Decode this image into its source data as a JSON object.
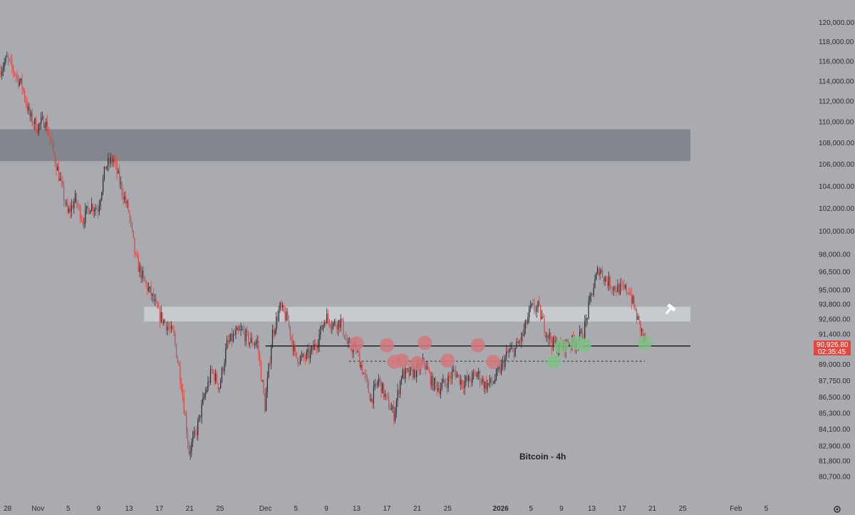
{
  "colors": {
    "background": "#a9abb1",
    "candle_up": "#2a2c33",
    "candle_down": "#d9473f",
    "resistance_zone_dark": "#84868d",
    "resistance_zone_light": "#d2d4da",
    "marker_red": "#d4787c",
    "marker_green": "#7fbf86",
    "price_tag": "#e5473f"
  },
  "icons": {
    "settings": "gear-icon",
    "hammer": "hammer-icon"
  },
  "annotation": "Bitcoin - 4h",
  "price_tag": {
    "price": "90,926.80",
    "countdown": "02:35:45"
  },
  "chart_data": {
    "type": "candlestick",
    "title": "",
    "annotation": "Bitcoin - 4h",
    "timeframe": "4h",
    "x_axis": {
      "ticks": [
        "28",
        "Nov",
        "5",
        "9",
        "13",
        "17",
        "21",
        "25",
        "Dec",
        "5",
        "9",
        "13",
        "17",
        "21",
        "25",
        "2026",
        "5",
        "9",
        "13",
        "17",
        "21",
        "25",
        "Feb",
        "5"
      ],
      "tick_dates": [
        "2025-10-28",
        "2025-11-01",
        "2025-11-05",
        "2025-11-09",
        "2025-11-13",
        "2025-11-17",
        "2025-11-21",
        "2025-11-25",
        "2025-12-01",
        "2025-12-05",
        "2025-12-09",
        "2025-12-13",
        "2025-12-17",
        "2025-12-21",
        "2025-12-25",
        "2026-01-01",
        "2026-01-05",
        "2026-01-09",
        "2026-01-13",
        "2026-01-17",
        "2026-01-21",
        "2026-01-25",
        "2026-02-01",
        "2026-02-05"
      ],
      "range": [
        "2025-10-27",
        "2026-02-09"
      ]
    },
    "y_axis": {
      "ticks": [
        "120,000.00",
        "118,000.00",
        "116,000.00",
        "114,000.00",
        "112,000.00",
        "110,000.00",
        "108,000.00",
        "106,000.00",
        "104,000.00",
        "102,000.00",
        "100,000.00",
        "98,000.00",
        "96,500.00",
        "95,000.00",
        "93,800.00",
        "92,600.00",
        "91,400.00",
        "89,000.00",
        "87,750.00",
        "86,500.00",
        "85,300.00",
        "84,100.00",
        "82,900.00",
        "81,800.00",
        "80,700.00"
      ],
      "scale": "log",
      "range": [
        80000,
        121000
      ]
    },
    "path": [
      [
        "2025-10-27",
        115000
      ],
      [
        "2025-10-28",
        116200
      ],
      [
        "2025-10-30",
        113500
      ],
      [
        "2025-10-31",
        110500
      ],
      [
        "2025-11-01",
        109500
      ],
      [
        "2025-11-02",
        110200
      ],
      [
        "2025-11-03",
        107500
      ],
      [
        "2025-11-04",
        104500
      ],
      [
        "2025-11-05",
        101500
      ],
      [
        "2025-11-06",
        102800
      ],
      [
        "2025-11-07",
        101000
      ],
      [
        "2025-11-08",
        102300
      ],
      [
        "2025-11-09",
        102000
      ],
      [
        "2025-11-10",
        105800
      ],
      [
        "2025-11-11",
        106500
      ],
      [
        "2025-11-12",
        104000
      ],
      [
        "2025-11-13",
        101800
      ],
      [
        "2025-11-14",
        97500
      ],
      [
        "2025-11-15",
        95800
      ],
      [
        "2025-11-16",
        94600
      ],
      [
        "2025-11-17",
        93000
      ],
      [
        "2025-11-18",
        92200
      ],
      [
        "2025-11-19",
        91200
      ],
      [
        "2025-11-20",
        87500
      ],
      [
        "2025-11-21",
        82500
      ],
      [
        "2025-11-22",
        84000
      ],
      [
        "2025-11-23",
        86500
      ],
      [
        "2025-11-24",
        88500
      ],
      [
        "2025-11-25",
        87300
      ],
      [
        "2025-11-26",
        90500
      ],
      [
        "2025-11-27",
        91300
      ],
      [
        "2025-11-28",
        91600
      ],
      [
        "2025-11-29",
        90800
      ],
      [
        "2025-11-30",
        90700
      ],
      [
        "2025-12-01",
        85800
      ],
      [
        "2025-12-02",
        91500
      ],
      [
        "2025-12-03",
        93500
      ],
      [
        "2025-12-04",
        92500
      ],
      [
        "2025-12-05",
        89600
      ],
      [
        "2025-12-06",
        89400
      ],
      [
        "2025-12-07",
        89800
      ],
      [
        "2025-12-08",
        91000
      ],
      [
        "2025-12-09",
        92800
      ],
      [
        "2025-12-10",
        92200
      ],
      [
        "2025-12-11",
        92400
      ],
      [
        "2025-12-12",
        90300
      ],
      [
        "2025-12-13",
        90300
      ],
      [
        "2025-12-14",
        88300
      ],
      [
        "2025-12-15",
        86300
      ],
      [
        "2025-12-16",
        87800
      ],
      [
        "2025-12-17",
        86300
      ],
      [
        "2025-12-18",
        85200
      ],
      [
        "2025-12-19",
        88200
      ],
      [
        "2025-12-20",
        88300
      ],
      [
        "2025-12-21",
        88500
      ],
      [
        "2025-12-22",
        89200
      ],
      [
        "2025-12-23",
        87600
      ],
      [
        "2025-12-24",
        87200
      ],
      [
        "2025-12-25",
        87700
      ],
      [
        "2025-12-26",
        88500
      ],
      [
        "2025-12-27",
        87600
      ],
      [
        "2025-12-28",
        87800
      ],
      [
        "2025-12-29",
        88300
      ],
      [
        "2025-12-30",
        87400
      ],
      [
        "2025-12-31",
        87600
      ],
      [
        "2026-01-01",
        88600
      ],
      [
        "2026-01-02",
        89900
      ],
      [
        "2026-01-03",
        90200
      ],
      [
        "2026-01-04",
        91300
      ],
      [
        "2026-01-05",
        93400
      ],
      [
        "2026-01-06",
        93500
      ],
      [
        "2026-01-07",
        91700
      ],
      [
        "2026-01-08",
        90600
      ],
      [
        "2026-01-09",
        90300
      ],
      [
        "2026-01-10",
        90700
      ],
      [
        "2026-01-11",
        90800
      ],
      [
        "2026-01-12",
        91500
      ],
      [
        "2026-01-13",
        94500
      ],
      [
        "2026-01-14",
        96800
      ],
      [
        "2026-01-15",
        95800
      ],
      [
        "2026-01-16",
        95200
      ],
      [
        "2026-01-17",
        95000
      ],
      [
        "2026-01-18",
        95000
      ],
      [
        "2026-01-19",
        92800
      ],
      [
        "2026-01-20",
        90926.8
      ]
    ],
    "resistance_zone": {
      "from": 106300,
      "to": 109300,
      "start": "2025-10-27",
      "end": "2026-01-26"
    },
    "light_zone": {
      "from": 92400,
      "to": 93600,
      "start": "2025-11-15",
      "end": "2026-01-26"
    },
    "support_line": {
      "value": 90450,
      "start": "2025-12-01",
      "end": "2026-01-26"
    },
    "dashed_line": {
      "value": 89250,
      "start": "2025-12-12",
      "end": "2026-01-20"
    },
    "red_markers": [
      [
        "2025-12-13",
        90650
      ],
      [
        "2025-12-17",
        90500
      ],
      [
        "2025-12-18",
        89200
      ],
      [
        "2025-12-19",
        89300
      ],
      [
        "2025-12-21",
        89100
      ],
      [
        "2025-12-22",
        90700
      ],
      [
        "2025-12-25",
        89300
      ],
      [
        "2025-12-29",
        90500
      ],
      [
        "2025-12-31",
        89200
      ]
    ],
    "green_markers": [
      [
        "2026-01-08",
        89200
      ],
      [
        "2026-01-09",
        90400
      ],
      [
        "2026-01-11",
        90700
      ],
      [
        "2026-01-12",
        90500
      ],
      [
        "2026-01-20",
        90700
      ]
    ]
  }
}
